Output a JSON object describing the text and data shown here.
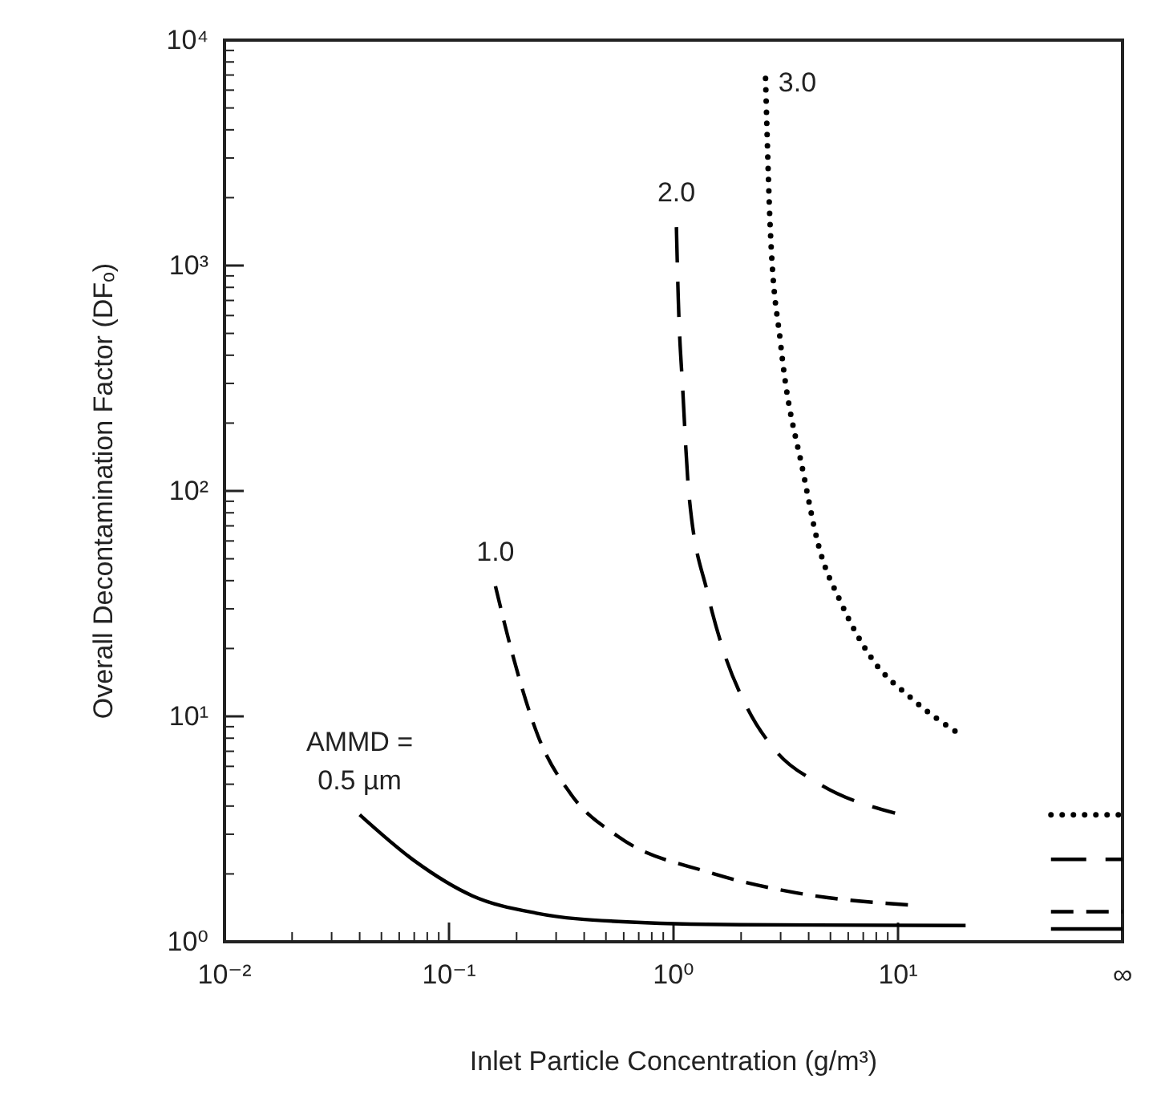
{
  "chart_data": {
    "type": "line",
    "xlabel": "Inlet Particle Concentration (g/m³)",
    "ylabel": "Overall Decontamination Factor (DFₒ)",
    "log": "xy",
    "grid": false,
    "legend": false,
    "marker": "none",
    "xlim": [
      0.01,
      100
    ],
    "ylim": [
      1,
      10000
    ],
    "xticks": [
      {
        "value": 0.01,
        "label": "10⁻²"
      },
      {
        "value": 0.1,
        "label": "10⁻¹"
      },
      {
        "value": 1,
        "label": "10⁰"
      },
      {
        "value": 10,
        "label": "10¹"
      },
      {
        "value": 100,
        "label": "∞"
      },
      {
        "value": 0.02,
        "label": null
      },
      {
        "value": 0.03,
        "label": null
      },
      {
        "value": 0.04,
        "label": null
      },
      {
        "value": 0.05,
        "label": null
      },
      {
        "value": 0.06,
        "label": null
      },
      {
        "value": 0.07,
        "label": null
      },
      {
        "value": 0.08,
        "label": null
      },
      {
        "value": 0.09,
        "label": null
      },
      {
        "value": 0.2,
        "label": null
      },
      {
        "value": 0.3,
        "label": null
      },
      {
        "value": 0.4,
        "label": null
      },
      {
        "value": 0.5,
        "label": null
      },
      {
        "value": 0.6,
        "label": null
      },
      {
        "value": 0.7,
        "label": null
      },
      {
        "value": 0.8,
        "label": null
      },
      {
        "value": 0.9,
        "label": null
      },
      {
        "value": 2,
        "label": null
      },
      {
        "value": 3,
        "label": null
      },
      {
        "value": 4,
        "label": null
      },
      {
        "value": 5,
        "label": null
      },
      {
        "value": 6,
        "label": null
      },
      {
        "value": 7,
        "label": null
      },
      {
        "value": 8,
        "label": null
      },
      {
        "value": 9,
        "label": null
      }
    ],
    "yticks": [
      {
        "value": 1,
        "label": "10⁰"
      },
      {
        "value": 10,
        "label": "10¹"
      },
      {
        "value": 100,
        "label": "10²"
      },
      {
        "value": 1000,
        "label": "10³"
      },
      {
        "value": 10000,
        "label": "10⁴"
      },
      {
        "value": 2,
        "label": null
      },
      {
        "value": 3,
        "label": null
      },
      {
        "value": 4,
        "label": null
      },
      {
        "value": 5,
        "label": null
      },
      {
        "value": 6,
        "label": null
      },
      {
        "value": 7,
        "label": null
      },
      {
        "value": 8,
        "label": null
      },
      {
        "value": 9,
        "label": null
      },
      {
        "value": 20,
        "label": null
      },
      {
        "value": 30,
        "label": null
      },
      {
        "value": 40,
        "label": null
      },
      {
        "value": 50,
        "label": null
      },
      {
        "value": 60,
        "label": null
      },
      {
        "value": 70,
        "label": null
      },
      {
        "value": 80,
        "label": null
      },
      {
        "value": 90,
        "label": null
      },
      {
        "value": 200,
        "label": null
      },
      {
        "value": 300,
        "label": null
      },
      {
        "value": 400,
        "label": null
      },
      {
        "value": 500,
        "label": null
      },
      {
        "value": 600,
        "label": null
      },
      {
        "value": 700,
        "label": null
      },
      {
        "value": 800,
        "label": null
      },
      {
        "value": 900,
        "label": null
      },
      {
        "value": 2000,
        "label": null
      },
      {
        "value": 3000,
        "label": null
      },
      {
        "value": 4000,
        "label": null
      },
      {
        "value": 5000,
        "label": null
      },
      {
        "value": 6000,
        "label": null
      },
      {
        "value": 7000,
        "label": null
      },
      {
        "value": 8000,
        "label": null
      },
      {
        "value": 9000,
        "label": null
      }
    ],
    "annotations": [
      {
        "text": "AMMD =",
        "x": 0.04,
        "y": 3.66
      }
    ],
    "series": [
      {
        "name": "0.5 µm",
        "color": "#000000",
        "line_style": "solid",
        "x": [
          0.04,
          0.07,
          0.127,
          0.245,
          0.57,
          2,
          20,
          30,
          48,
          100
        ],
        "values": [
          3.66,
          2.29,
          1.6,
          1.34,
          1.23,
          1.19,
          1.18,
          null,
          1.14,
          1.14
        ]
      },
      {
        "name": "1.0",
        "color": "#000000",
        "line_style": "dashed",
        "x": [
          0.161,
          0.19,
          0.249,
          0.35,
          0.57,
          1.42,
          3.5,
          12,
          30,
          48,
          100
        ],
        "values": [
          37.8,
          19.5,
          8.2,
          4.5,
          2.92,
          2.04,
          1.65,
          1.45,
          null,
          1.36,
          1.36
        ]
      },
      {
        "name": "2.0",
        "color": "#000000",
        "line_style": "dashdot",
        "x": [
          1.03,
          1.05,
          1.1,
          1.17,
          1.42,
          1.67,
          2.1,
          2.9,
          4.4,
          9.7,
          30,
          48,
          100
        ],
        "values": [
          1480,
          712,
          278,
          98,
          35,
          19.5,
          11.2,
          6.9,
          5.06,
          3.72,
          null,
          2.32,
          2.32
        ]
      },
      {
        "name": "3.0",
        "color": "#000000",
        "line_style": "dotted",
        "x": [
          2.57,
          2.7,
          3.0,
          3.8,
          4.4,
          5.6,
          7.6,
          11.5,
          19.3,
          30,
          48,
          100
        ],
        "values": [
          6760,
          1430,
          450,
          118,
          58.6,
          31.6,
          18.2,
          12,
          8.2,
          null,
          3.66,
          3.66
        ]
      }
    ]
  }
}
